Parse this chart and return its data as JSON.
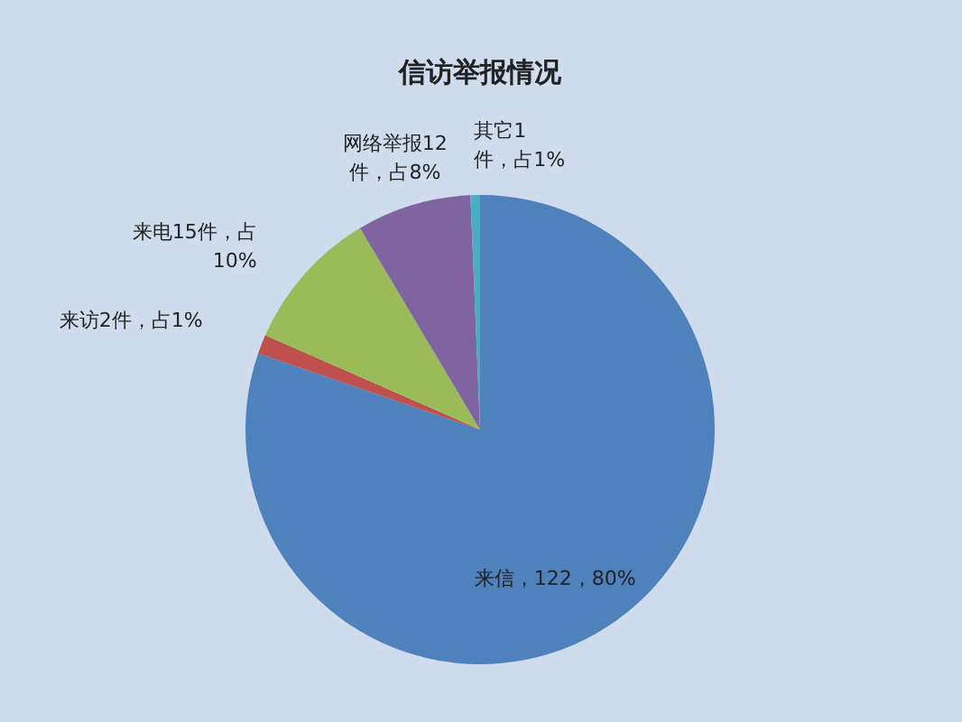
{
  "chart_data": {
    "type": "pie",
    "title": "信访举报情况",
    "categories": [
      "来信",
      "来访",
      "来电",
      "网络举报",
      "其它"
    ],
    "values": [
      122,
      2,
      15,
      12,
      1
    ],
    "colors": [
      "#4f81bd",
      "#c0504d",
      "#9bbb59",
      "#8064a2",
      "#4bacc6"
    ],
    "value_labels": [
      "，122，80%",
      "2件，占1%",
      "15件，占\n10%",
      "12\n件，占8%",
      "1\n件，占1%"
    ]
  }
}
